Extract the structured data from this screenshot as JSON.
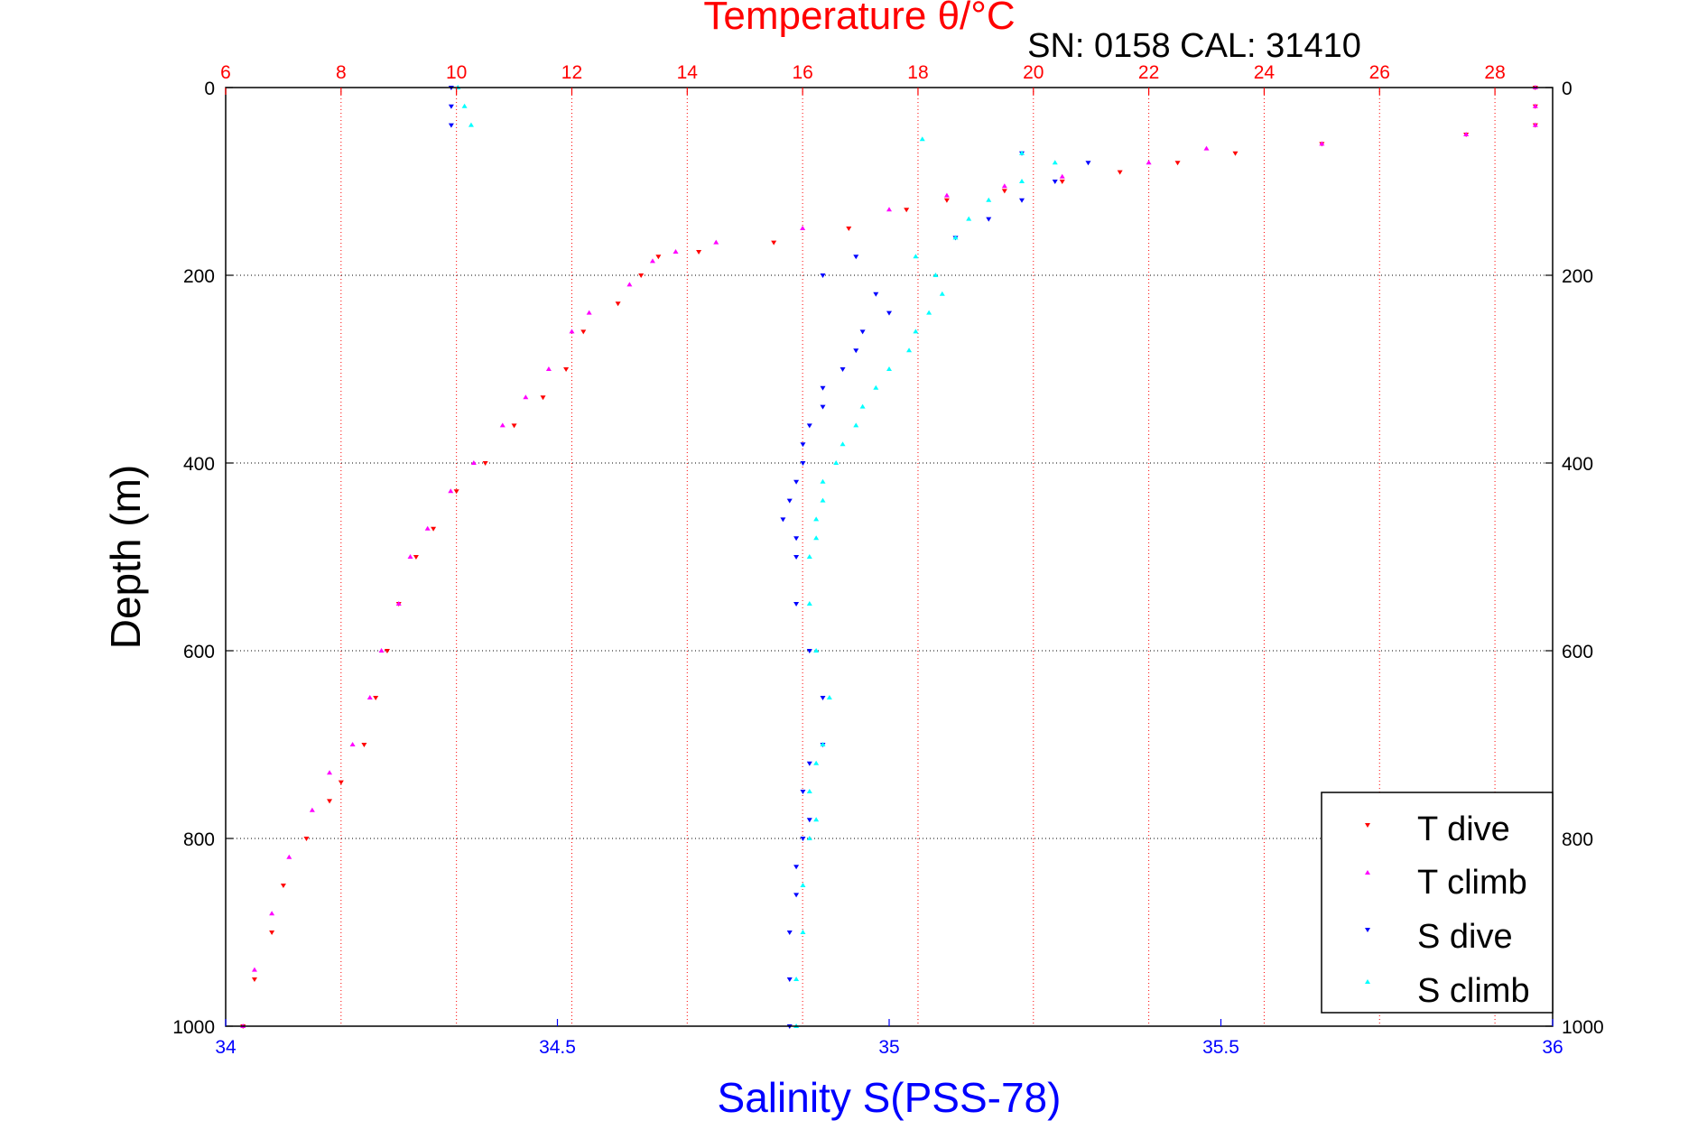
{
  "chart_data": {
    "type": "scatter",
    "title": "Temperature θ/°C",
    "subtitle": "SN: 0158  CAL: 31410",
    "xlabel": "Salinity S(PSS-78)",
    "ylabel": "Depth (m)",
    "x_bottom": {
      "label": "Salinity S(PSS-78)",
      "range": [
        34,
        36
      ],
      "ticks": [
        "34",
        "34.5",
        "35",
        "35.5",
        "36"
      ],
      "color": "#0000ff"
    },
    "x_top": {
      "label": "Temperature θ/°C",
      "range": [
        6,
        29
      ],
      "ticks": [
        "6",
        "8",
        "10",
        "12",
        "14",
        "16",
        "18",
        "20",
        "22",
        "24",
        "26",
        "28"
      ],
      "color": "#ff0000"
    },
    "y": {
      "label": "Depth (m)",
      "range": [
        0,
        1000
      ],
      "reversed": true,
      "ticks": [
        "0",
        "200",
        "400",
        "600",
        "800",
        "1000"
      ]
    },
    "grid": true,
    "legend": {
      "position": "bottom-right",
      "entries": [
        "T dive",
        "T climb",
        "S dive",
        "S climb"
      ]
    },
    "series": [
      {
        "name": "T dive",
        "axis": "top",
        "color": "#ff0000",
        "marker": "triangle-down",
        "points": [
          [
            28.7,
            0
          ],
          [
            28.7,
            20
          ],
          [
            28.7,
            40
          ],
          [
            27.5,
            50
          ],
          [
            25.0,
            60
          ],
          [
            23.5,
            70
          ],
          [
            22.5,
            80
          ],
          [
            21.5,
            90
          ],
          [
            20.5,
            100
          ],
          [
            19.5,
            110
          ],
          [
            18.5,
            120
          ],
          [
            17.8,
            130
          ],
          [
            16.8,
            150
          ],
          [
            15.5,
            165
          ],
          [
            14.2,
            175
          ],
          [
            13.5,
            180
          ],
          [
            13.2,
            200
          ],
          [
            12.8,
            230
          ],
          [
            12.2,
            260
          ],
          [
            11.9,
            300
          ],
          [
            11.5,
            330
          ],
          [
            11.0,
            360
          ],
          [
            10.5,
            400
          ],
          [
            10.0,
            430
          ],
          [
            9.6,
            470
          ],
          [
            9.3,
            500
          ],
          [
            9.0,
            550
          ],
          [
            8.8,
            600
          ],
          [
            8.6,
            650
          ],
          [
            8.4,
            700
          ],
          [
            8.0,
            740
          ],
          [
            7.8,
            760
          ],
          [
            7.4,
            800
          ],
          [
            7.0,
            850
          ],
          [
            6.8,
            900
          ],
          [
            6.5,
            950
          ],
          [
            6.3,
            1000
          ]
        ]
      },
      {
        "name": "T climb",
        "axis": "top",
        "color": "#ff00ff",
        "marker": "triangle-up",
        "points": [
          [
            28.7,
            0
          ],
          [
            28.7,
            20
          ],
          [
            28.7,
            40
          ],
          [
            27.5,
            50
          ],
          [
            25.0,
            60
          ],
          [
            23.0,
            65
          ],
          [
            22.0,
            80
          ],
          [
            20.5,
            95
          ],
          [
            19.5,
            105
          ],
          [
            18.5,
            115
          ],
          [
            17.5,
            130
          ],
          [
            16.0,
            150
          ],
          [
            14.5,
            165
          ],
          [
            13.8,
            175
          ],
          [
            13.4,
            185
          ],
          [
            13.0,
            210
          ],
          [
            12.3,
            240
          ],
          [
            12.0,
            260
          ],
          [
            11.6,
            300
          ],
          [
            11.2,
            330
          ],
          [
            10.8,
            360
          ],
          [
            10.3,
            400
          ],
          [
            9.9,
            430
          ],
          [
            9.5,
            470
          ],
          [
            9.2,
            500
          ],
          [
            9.0,
            550
          ],
          [
            8.7,
            600
          ],
          [
            8.5,
            650
          ],
          [
            8.2,
            700
          ],
          [
            7.8,
            730
          ],
          [
            7.5,
            770
          ],
          [
            7.1,
            820
          ],
          [
            6.8,
            880
          ],
          [
            6.5,
            940
          ],
          [
            6.3,
            1000
          ]
        ]
      },
      {
        "name": "S dive",
        "axis": "bottom",
        "color": "#0000ff",
        "marker": "triangle-down",
        "points": [
          [
            34.34,
            0
          ],
          [
            34.34,
            20
          ],
          [
            34.34,
            40
          ],
          [
            35.2,
            70
          ],
          [
            35.3,
            80
          ],
          [
            35.25,
            100
          ],
          [
            35.2,
            120
          ],
          [
            35.15,
            140
          ],
          [
            35.1,
            160
          ],
          [
            34.95,
            180
          ],
          [
            34.9,
            200
          ],
          [
            34.98,
            220
          ],
          [
            35.0,
            240
          ],
          [
            34.96,
            260
          ],
          [
            34.95,
            280
          ],
          [
            34.93,
            300
          ],
          [
            34.9,
            320
          ],
          [
            34.9,
            340
          ],
          [
            34.88,
            360
          ],
          [
            34.87,
            380
          ],
          [
            34.87,
            400
          ],
          [
            34.86,
            420
          ],
          [
            34.85,
            440
          ],
          [
            34.84,
            460
          ],
          [
            34.86,
            480
          ],
          [
            34.86,
            500
          ],
          [
            34.86,
            550
          ],
          [
            34.88,
            600
          ],
          [
            34.9,
            650
          ],
          [
            34.9,
            700
          ],
          [
            34.88,
            720
          ],
          [
            34.87,
            750
          ],
          [
            34.88,
            780
          ],
          [
            34.87,
            800
          ],
          [
            34.86,
            830
          ],
          [
            34.86,
            860
          ],
          [
            34.85,
            900
          ],
          [
            34.85,
            950
          ],
          [
            34.85,
            1000
          ]
        ]
      },
      {
        "name": "S climb",
        "axis": "bottom",
        "color": "#00ffff",
        "marker": "triangle-up",
        "points": [
          [
            34.35,
            0
          ],
          [
            34.36,
            20
          ],
          [
            34.37,
            40
          ],
          [
            35.05,
            55
          ],
          [
            35.2,
            70
          ],
          [
            35.25,
            80
          ],
          [
            35.2,
            100
          ],
          [
            35.15,
            120
          ],
          [
            35.12,
            140
          ],
          [
            35.1,
            160
          ],
          [
            35.04,
            180
          ],
          [
            35.07,
            200
          ],
          [
            35.08,
            220
          ],
          [
            35.06,
            240
          ],
          [
            35.04,
            260
          ],
          [
            35.03,
            280
          ],
          [
            35.0,
            300
          ],
          [
            34.98,
            320
          ],
          [
            34.96,
            340
          ],
          [
            34.95,
            360
          ],
          [
            34.93,
            380
          ],
          [
            34.92,
            400
          ],
          [
            34.9,
            420
          ],
          [
            34.9,
            440
          ],
          [
            34.89,
            460
          ],
          [
            34.89,
            480
          ],
          [
            34.88,
            500
          ],
          [
            34.88,
            550
          ],
          [
            34.89,
            600
          ],
          [
            34.91,
            650
          ],
          [
            34.9,
            700
          ],
          [
            34.89,
            720
          ],
          [
            34.88,
            750
          ],
          [
            34.89,
            780
          ],
          [
            34.88,
            800
          ],
          [
            34.87,
            850
          ],
          [
            34.87,
            900
          ],
          [
            34.86,
            950
          ],
          [
            34.86,
            1000
          ]
        ]
      }
    ]
  }
}
